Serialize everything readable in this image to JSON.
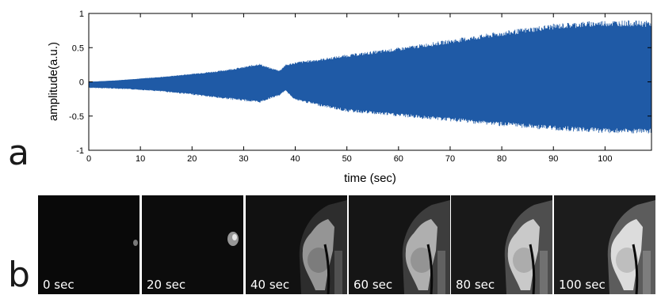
{
  "panels": {
    "a": "a",
    "b": "b"
  },
  "chart_data": {
    "type": "line",
    "title": "",
    "xlabel": "time (sec)",
    "ylabel": "amplitude(a.u.)",
    "xlim": [
      0,
      109
    ],
    "ylim": [
      -1,
      1
    ],
    "xticks": [
      0,
      10,
      20,
      30,
      40,
      50,
      60,
      70,
      80,
      90,
      100
    ],
    "yticks": [
      -1,
      -0.5,
      0,
      0.5,
      1
    ],
    "ytick_labels": [
      "-1",
      "-0.5",
      "0",
      "0.5",
      "1"
    ],
    "grid": false,
    "color": "#1f5aa6",
    "envelope": {
      "t": [
        0,
        5,
        10,
        15,
        20,
        25,
        30,
        33,
        35,
        37,
        38,
        40,
        45,
        50,
        60,
        70,
        80,
        90,
        95,
        100,
        105,
        109
      ],
      "upper": [
        0.0,
        0.02,
        0.05,
        0.08,
        0.12,
        0.16,
        0.22,
        0.27,
        0.21,
        0.17,
        0.25,
        0.29,
        0.34,
        0.4,
        0.5,
        0.62,
        0.74,
        0.85,
        0.88,
        0.9,
        0.9,
        0.89
      ],
      "lower": [
        -0.09,
        -0.1,
        -0.12,
        -0.15,
        -0.19,
        -0.24,
        -0.28,
        -0.31,
        -0.25,
        -0.2,
        -0.13,
        -0.27,
        -0.36,
        -0.44,
        -0.51,
        -0.58,
        -0.65,
        -0.71,
        -0.73,
        -0.75,
        -0.76,
        -0.76
      ]
    }
  },
  "frames": [
    {
      "label": "0 sec",
      "brightness": 0.05
    },
    {
      "label": "20 sec",
      "brightness": 0.2
    },
    {
      "label": "40 sec",
      "brightness": 0.45
    },
    {
      "label": "60 sec",
      "brightness": 0.65
    },
    {
      "label": "80 sec",
      "brightness": 0.85
    },
    {
      "label": "100 sec",
      "brightness": 1.0
    }
  ]
}
